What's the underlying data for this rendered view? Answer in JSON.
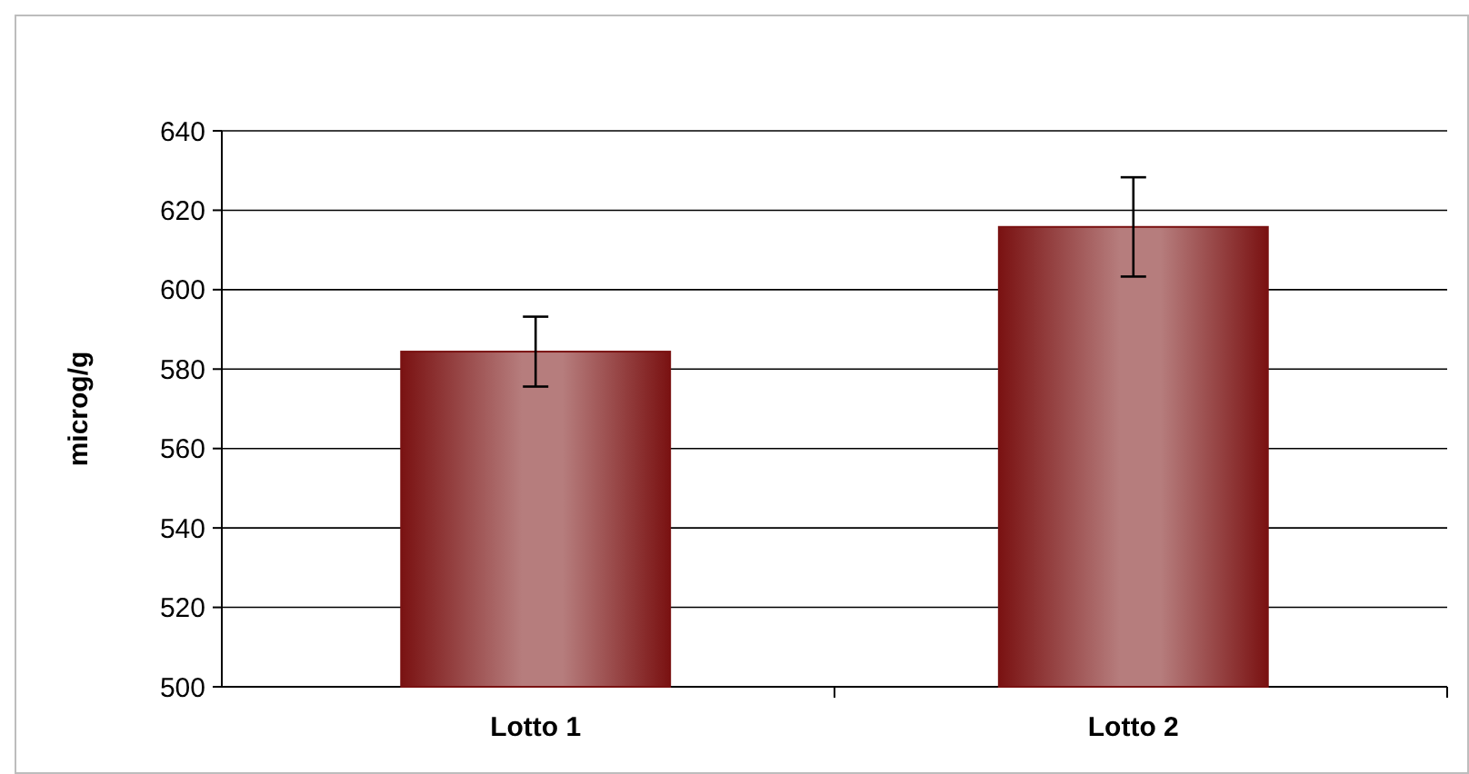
{
  "chart_data": {
    "type": "bar",
    "ylabel": "microg/g",
    "categories": [
      "Lotto 1",
      "Lotto 2"
    ],
    "values": [
      584.4,
      615.8
    ],
    "errors": [
      8.8,
      12.5
    ],
    "color": "#7a1212",
    "ylim": [
      500,
      640
    ],
    "yticks": [
      500,
      520,
      540,
      560,
      580,
      600,
      620,
      640
    ],
    "grid": "y"
  }
}
